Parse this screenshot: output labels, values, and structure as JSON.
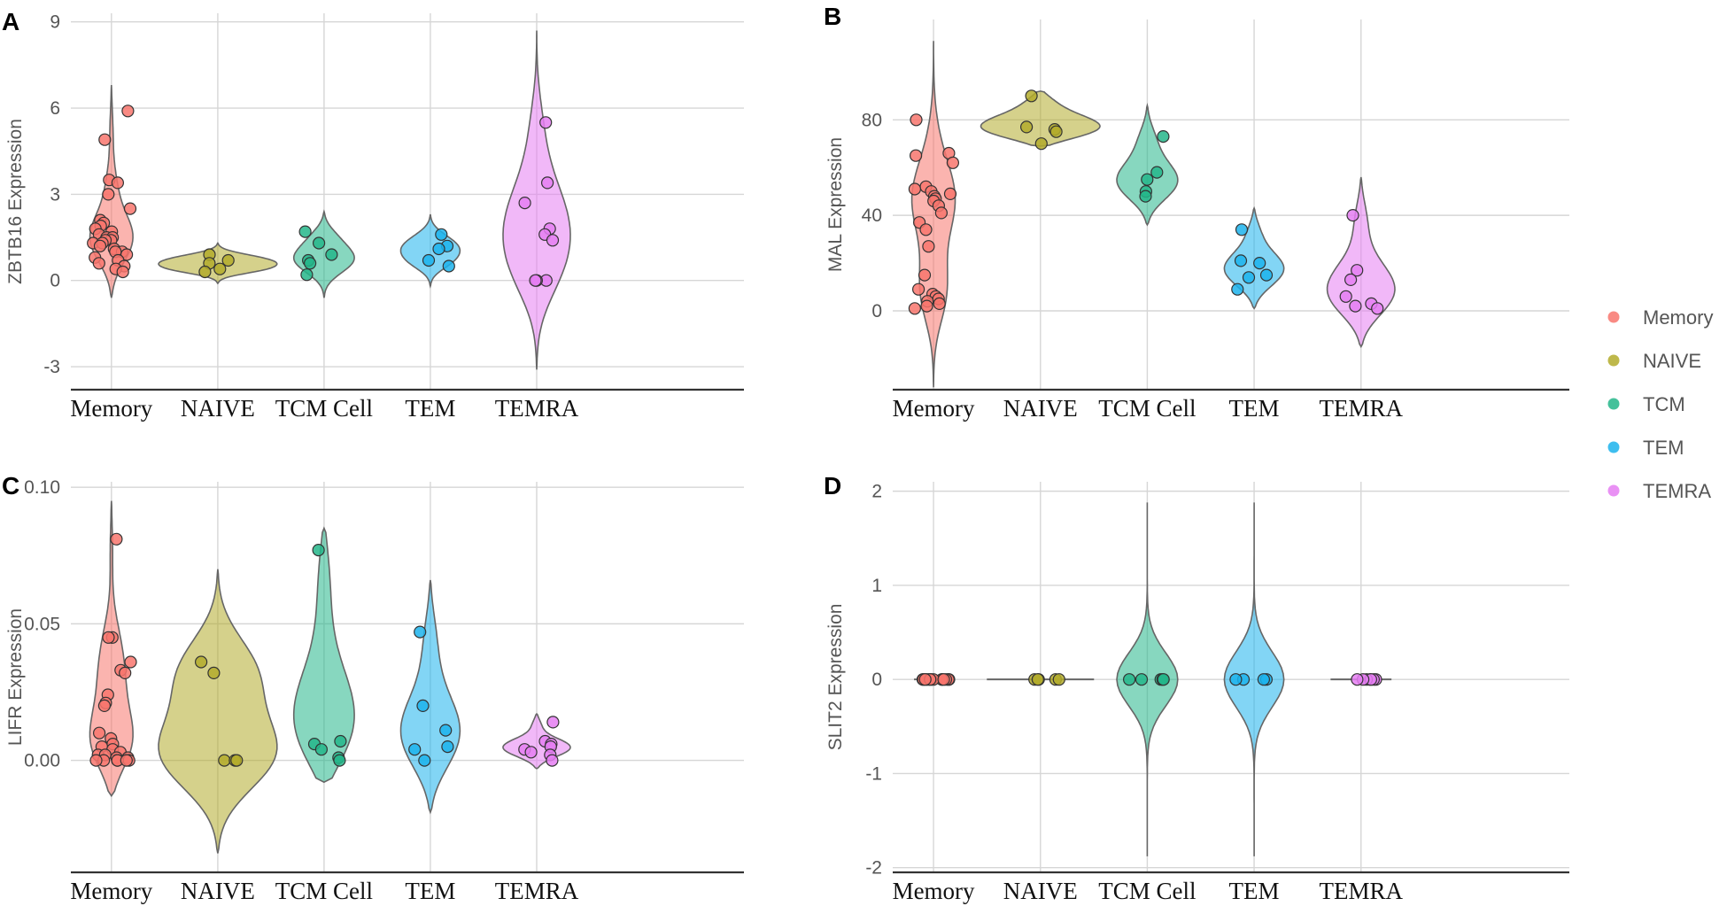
{
  "chart_data": [
    {
      "panel": "A",
      "type": "violin",
      "ylabel": "ZBTB16  Expression",
      "categories": [
        "Memory",
        "NAIVE",
        "TCM Cell",
        "TEM",
        "TEMRA"
      ],
      "ylim": [
        -3.8,
        9.3
      ],
      "yticks": [
        -3,
        0,
        3,
        6,
        9
      ],
      "ytick_labels": [
        "-3",
        "0",
        "3",
        "6",
        "9"
      ],
      "violin_range": [
        [
          -0.6,
          6.8
        ],
        [
          -0.1,
          1.3
        ],
        [
          -0.6,
          2.4
        ],
        [
          -0.2,
          2.3
        ],
        [
          -3.1,
          8.7
        ]
      ],
      "points": [
        [
          5.9,
          4.9,
          3.5,
          3.4,
          3.0,
          2.5,
          2.1,
          2.0,
          1.9,
          1.8,
          1.7,
          1.6,
          1.5,
          1.5,
          1.4,
          1.4,
          1.3,
          1.3,
          1.2,
          1.1,
          1.0,
          1.0,
          0.9,
          0.8,
          0.7,
          0.6,
          0.5,
          0.4,
          0.3
        ],
        [
          0.9,
          0.7,
          0.6,
          0.4,
          0.3
        ],
        [
          1.7,
          1.3,
          0.9,
          0.7,
          0.6,
          0.2
        ],
        [
          1.6,
          1.2,
          1.1,
          0.7,
          0.5
        ],
        [
          5.5,
          3.4,
          2.7,
          1.8,
          1.6,
          1.4,
          0.0,
          0.0,
          0.0
        ]
      ]
    },
    {
      "panel": "B",
      "type": "violin",
      "ylabel": "MAL  Expression",
      "categories": [
        "Memory",
        "NAIVE",
        "TCM Cell",
        "TEM",
        "TEMRA"
      ],
      "ylim": [
        -33,
        122
      ],
      "yticks": [
        0,
        40,
        80
      ],
      "ytick_labels": [
        "0",
        "40",
        "80"
      ],
      "violin_range": [
        [
          -32,
          113
        ],
        [
          69,
          92
        ],
        [
          36,
          86
        ],
        [
          1,
          43
        ],
        [
          -15,
          56
        ]
      ],
      "points": [
        [
          80,
          66,
          65,
          62,
          52,
          51,
          50,
          49,
          48,
          47,
          46,
          44,
          41,
          37,
          34,
          27,
          15,
          9,
          7,
          6,
          5,
          4,
          3,
          2,
          1
        ],
        [
          90,
          77,
          76,
          75,
          70
        ],
        [
          73,
          58,
          55,
          50,
          48
        ],
        [
          34,
          21,
          20,
          15,
          14,
          9
        ],
        [
          40,
          17,
          13,
          6,
          3,
          2,
          1
        ]
      ]
    },
    {
      "panel": "C",
      "type": "violin",
      "ylabel": "LIFR  Expression",
      "categories": [
        "Memory",
        "NAIVE",
        "TCM Cell",
        "TEM",
        "TEMRA"
      ],
      "ylim": [
        -0.041,
        0.102
      ],
      "yticks": [
        0.0,
        0.05,
        0.1
      ],
      "ytick_labels": [
        "0.00",
        "0.05",
        "0.10"
      ],
      "violin_range": [
        [
          -0.013,
          0.095
        ],
        [
          -0.034,
          0.07
        ],
        [
          -0.008,
          0.085
        ],
        [
          -0.019,
          0.066
        ],
        [
          -0.003,
          0.017
        ]
      ],
      "points": [
        [
          0.081,
          0.045,
          0.045,
          0.036,
          0.033,
          0.032,
          0.024,
          0.021,
          0.02,
          0.01,
          0.008,
          0.006,
          0.005,
          0.004,
          0.003,
          0.002,
          0.002,
          0.001,
          0.001,
          0.0,
          0.0,
          0.0,
          0.0,
          0.0,
          0.0
        ],
        [
          0.036,
          0.032,
          0.0,
          0.0,
          0.0
        ],
        [
          0.077,
          0.007,
          0.006,
          0.004,
          0.001,
          0.0
        ],
        [
          0.047,
          0.02,
          0.011,
          0.005,
          0.004,
          0.0
        ],
        [
          0.014,
          0.007,
          0.006,
          0.005,
          0.004,
          0.003,
          0.002,
          0.0
        ]
      ]
    },
    {
      "panel": "D",
      "type": "violin",
      "ylabel": "SLIT2  Expression",
      "categories": [
        "Memory",
        "NAIVE",
        "TCM Cell",
        "TEM",
        "TEMRA"
      ],
      "ylim": [
        -2.05,
        2.1
      ],
      "yticks": [
        -2,
        -1,
        0,
        1,
        2
      ],
      "ytick_labels": [
        "-2",
        "-1",
        "0",
        "1",
        "2"
      ],
      "violin_range": [
        [
          0,
          0
        ],
        [
          0,
          0
        ],
        [
          -1.88,
          1.88
        ],
        [
          -1.88,
          1.88
        ],
        [
          0,
          0
        ]
      ],
      "points": [
        [
          0,
          0,
          0,
          0,
          0,
          0,
          0,
          0,
          0,
          0,
          0,
          0,
          0,
          0
        ],
        [
          0,
          0,
          0,
          0,
          0
        ],
        [
          0,
          0,
          0,
          0,
          0
        ],
        [
          0,
          0,
          0,
          0
        ],
        [
          0,
          0,
          0,
          0,
          0,
          0,
          0
        ]
      ]
    }
  ],
  "legend": {
    "items": [
      {
        "label": "Memory",
        "color": "#f8766d"
      },
      {
        "label": "NAIVE",
        "color": "#b3ac2b"
      },
      {
        "label": "TCM",
        "color": "#25b68a"
      },
      {
        "label": "TEM",
        "color": "#1cb3ec"
      },
      {
        "label": "TEMRA",
        "color": "#e57ef2"
      }
    ]
  }
}
